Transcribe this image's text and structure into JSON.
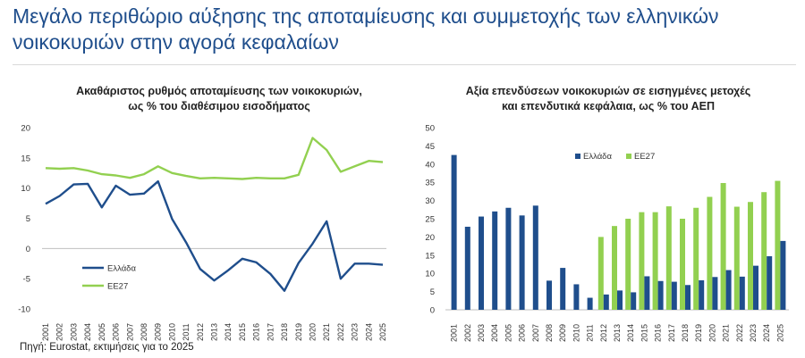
{
  "page": {
    "title": "Μεγάλο περιθώριο αύξησης της αποταμίευσης και συμμετοχής των ελληνικών νοικοκυριών στην αγορά κεφαλαίων",
    "source": "Πηγή: Eurostat, εκτιμήσεις για το 2025"
  },
  "colors": {
    "greece": "#1f4e8c",
    "eu27": "#92d050",
    "title": "#1f4e8c"
  },
  "chart_data": [
    {
      "type": "line",
      "title": "Ακαθάριστος ρυθμός αποταμίευσης των νοικοκυριών,",
      "subtitle": "ως % του διαθέσιμου εισοδήματος",
      "x": [
        "2001",
        "2002",
        "2003",
        "2004",
        "2005",
        "2006",
        "2007",
        "2008",
        "2009",
        "2010",
        "2011",
        "2012",
        "2013",
        "2014",
        "2015",
        "2016",
        "2017",
        "2018",
        "2019",
        "2020",
        "2021",
        "2022",
        "2023",
        "2024",
        "2025"
      ],
      "ylim": [
        -10,
        20
      ],
      "yticks": [
        -10,
        -5,
        0,
        5,
        10,
        15,
        20
      ],
      "legend_position": "bottom-left",
      "grid": false,
      "series": [
        {
          "name": "Ελλάδα",
          "color": "#1f4e8c",
          "values": [
            7.4,
            8.7,
            10.6,
            10.7,
            6.8,
            10.4,
            8.9,
            9.1,
            11.1,
            4.9,
            1.0,
            -3.4,
            -5.3,
            -3.6,
            -1.7,
            -2.3,
            -4.2,
            -7.0,
            -2.4,
            0.8,
            4.5,
            -5.0,
            -2.5,
            -2.5,
            -2.7
          ]
        },
        {
          "name": "ΕΕ27",
          "color": "#92d050",
          "values": [
            13.3,
            13.2,
            13.3,
            12.9,
            12.3,
            12.1,
            11.7,
            12.3,
            13.6,
            12.5,
            12.0,
            11.6,
            11.7,
            11.6,
            11.5,
            11.7,
            11.6,
            11.6,
            12.2,
            18.3,
            16.3,
            12.7,
            13.6,
            14.5,
            14.3
          ]
        }
      ]
    },
    {
      "type": "bar",
      "title": "Αξία επενδύσεων νοικοκυριών σε εισηγμένες μετοχές",
      "subtitle": "και επενδυτικά κεφάλαια, ως % του ΑΕΠ",
      "categories": [
        "2001",
        "2002",
        "2003",
        "2004",
        "2005",
        "2006",
        "2007",
        "2008",
        "2009",
        "2010",
        "2011",
        "2012",
        "2013",
        "2014",
        "2015",
        "2016",
        "2017",
        "2018",
        "2019",
        "2020",
        "2021",
        "2022",
        "2023",
        "2024",
        "2025"
      ],
      "ylim": [
        0,
        50
      ],
      "yticks": [
        0,
        5,
        10,
        15,
        20,
        25,
        30,
        35,
        40,
        45,
        50
      ],
      "legend_position": "top-center",
      "grid": false,
      "series": [
        {
          "name": "Ελλάδα",
          "color": "#1f4e8c",
          "values": [
            42.5,
            22.8,
            25.6,
            27.0,
            28.0,
            25.9,
            28.6,
            8.0,
            11.5,
            7.0,
            3.3,
            4.2,
            5.3,
            4.8,
            9.2,
            7.9,
            7.7,
            6.8,
            8.1,
            9.0,
            10.9,
            9.1,
            12.1,
            14.7,
            18.9
          ]
        },
        {
          "name": "ΕΕ27",
          "color": "#92d050",
          "values": [
            null,
            null,
            null,
            null,
            null,
            null,
            null,
            null,
            null,
            null,
            null,
            20.0,
            23.0,
            25.0,
            26.8,
            26.8,
            28.4,
            25.0,
            28.0,
            31.0,
            34.8,
            28.3,
            29.6,
            32.3,
            35.4
          ]
        }
      ]
    }
  ]
}
